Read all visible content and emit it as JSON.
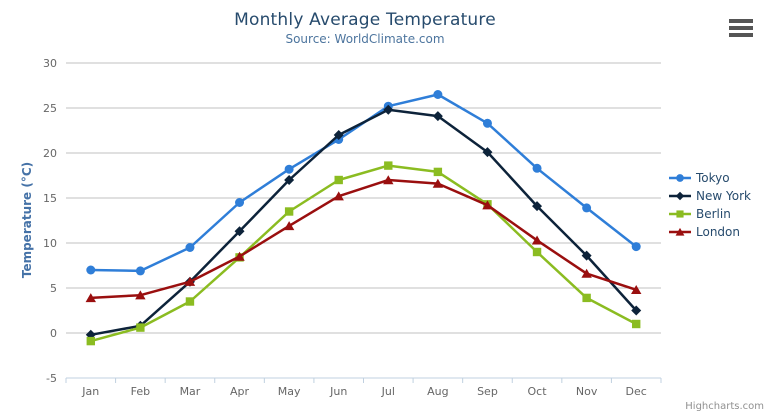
{
  "header": {
    "title": "Monthly Average Temperature",
    "subtitle": "Source: WorldClimate.com"
  },
  "chart_data": {
    "type": "line",
    "title": "Monthly Average Temperature",
    "subtitle": "Source: WorldClimate.com",
    "categories": [
      "Jan",
      "Feb",
      "Mar",
      "Apr",
      "May",
      "Jun",
      "Jul",
      "Aug",
      "Sep",
      "Oct",
      "Nov",
      "Dec"
    ],
    "xlabel": "",
    "ylabel": "Temperature (°C)",
    "ylim": [
      -5,
      30
    ],
    "ytick_step": 5,
    "grid": true,
    "legend_position": "right",
    "series": [
      {
        "name": "Tokyo",
        "color": "#2f7ed8",
        "marker": "circle",
        "values": [
          7.0,
          6.9,
          9.5,
          14.5,
          18.2,
          21.5,
          25.2,
          26.5,
          23.3,
          18.3,
          13.9,
          9.6
        ]
      },
      {
        "name": "New York",
        "color": "#0d233a",
        "marker": "diamond",
        "values": [
          -0.2,
          0.8,
          5.7,
          11.3,
          17.0,
          22.0,
          24.8,
          24.1,
          20.1,
          14.1,
          8.6,
          2.5
        ]
      },
      {
        "name": "Berlin",
        "color": "#8bbc21",
        "marker": "square",
        "values": [
          -0.9,
          0.6,
          3.5,
          8.4,
          13.5,
          17.0,
          18.6,
          17.9,
          14.3,
          9.0,
          3.9,
          1.0
        ]
      },
      {
        "name": "London",
        "color": "#9a0f0f",
        "marker": "triangle",
        "values": [
          3.9,
          4.2,
          5.7,
          8.5,
          11.9,
          15.2,
          17.0,
          16.6,
          14.2,
          10.3,
          6.6,
          4.8
        ]
      }
    ]
  },
  "colors": {
    "title": "#274b6d",
    "subtitle": "#4d759e",
    "axis_title": "#4572a7",
    "tick_label": "#666666",
    "grid_line": "#c0c0c0",
    "axis_line": "#c0d0e0",
    "legend_text": "#274b6d",
    "credits_text": "#909090",
    "menu_icon": "#555555"
  },
  "credits": {
    "label": "Highcharts.com"
  },
  "menu": {
    "icon": "hamburger-icon"
  }
}
